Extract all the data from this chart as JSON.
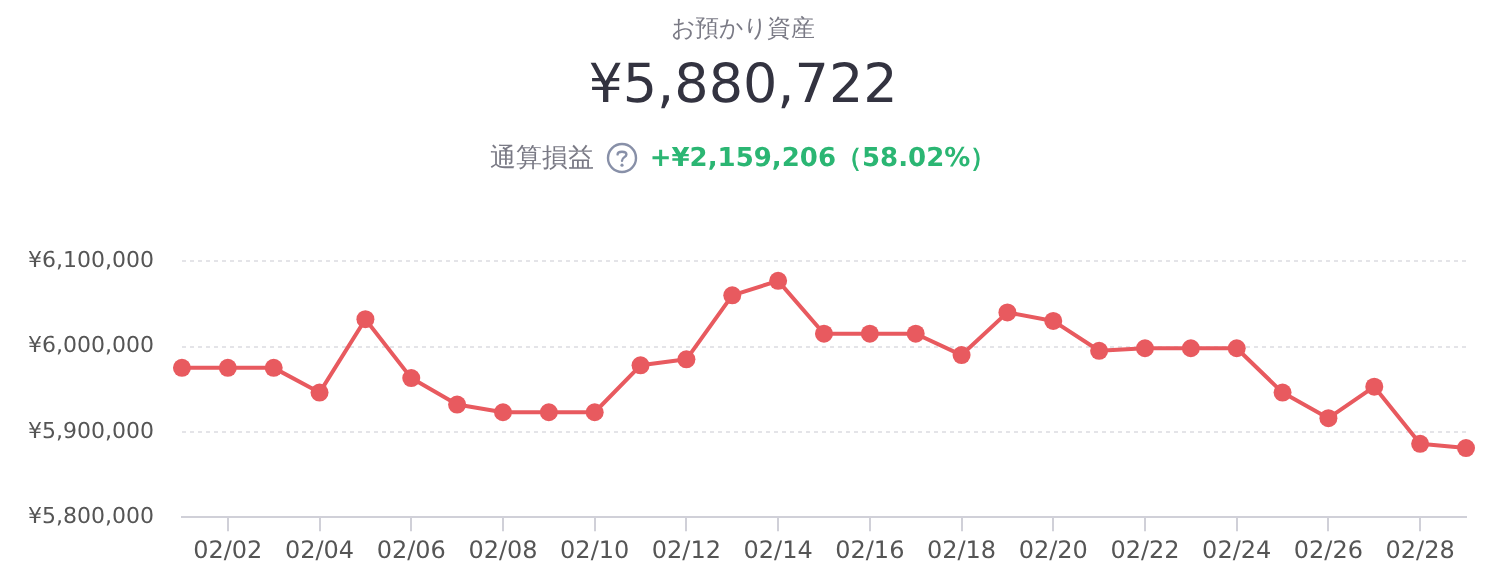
{
  "chart_data": {
    "type": "line",
    "title": "お預かり資産",
    "subtitle": "¥5,880,722",
    "annotations": [
      "通算損益",
      "+¥2,159,206（58.02%）"
    ],
    "categories": [
      null,
      "02/02",
      null,
      "02/04",
      null,
      "02/06",
      null,
      "02/08",
      null,
      "02/10",
      null,
      "02/12",
      null,
      "02/14",
      null,
      "02/16",
      null,
      "02/18",
      null,
      "02/20",
      null,
      "02/22",
      null,
      "02/24",
      null,
      "02/26",
      null,
      "02/28",
      null
    ],
    "series": [
      {
        "color": "#e85a5f",
        "values": [
          5975000,
          5975000,
          5975000,
          5946000,
          6032000,
          5963000,
          5932000,
          5923000,
          5923000,
          5923000,
          5978000,
          5985000,
          6060000,
          6077000,
          6015000,
          6015000,
          6015000,
          5990000,
          6040000,
          6030000,
          5995000,
          5998000,
          5998000,
          5998000,
          5946000,
          5916000,
          5953000,
          5886000,
          5881000
        ]
      }
    ],
    "ylim": [
      5800000,
      6100000
    ],
    "yticks": [
      {
        "value": 5800000,
        "label": "¥5,800,000"
      },
      {
        "value": 5900000,
        "label": "¥5,900,000"
      },
      {
        "value": 6000000,
        "label": "¥6,000,000"
      },
      {
        "value": 6100000,
        "label": "¥6,100,000"
      }
    ],
    "grid": "y",
    "legend": false,
    "marker": "circle",
    "line_style": "solid"
  }
}
